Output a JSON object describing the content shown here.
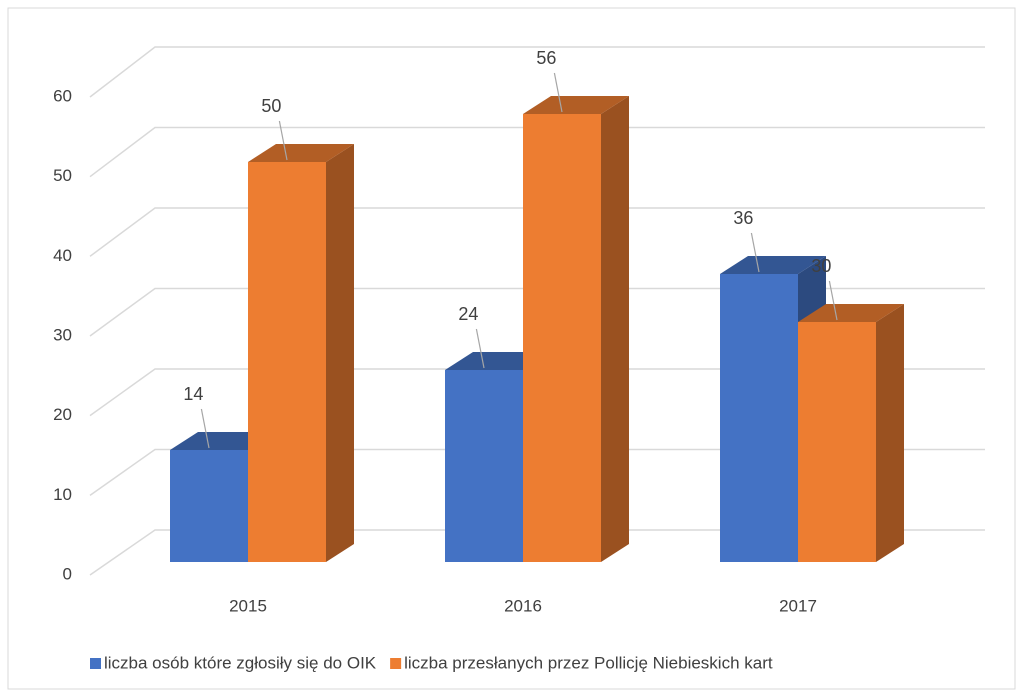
{
  "chart_data": {
    "type": "bar3d",
    "categories": [
      "2015",
      "2016",
      "2017"
    ],
    "series": [
      {
        "name": "liczba osób które zgłosiły się do OIK",
        "color": "#4472c4",
        "values": [
          14,
          24,
          36
        ]
      },
      {
        "name": "liczba przesłanych przez Pollicję Niebieskich kart",
        "color": "#ed7d31",
        "values": [
          50,
          56,
          30
        ]
      }
    ],
    "ylim": [
      0,
      60
    ],
    "yticks": [
      0,
      10,
      20,
      30,
      40,
      50,
      60
    ],
    "grid": true,
    "legend": "bottom"
  }
}
